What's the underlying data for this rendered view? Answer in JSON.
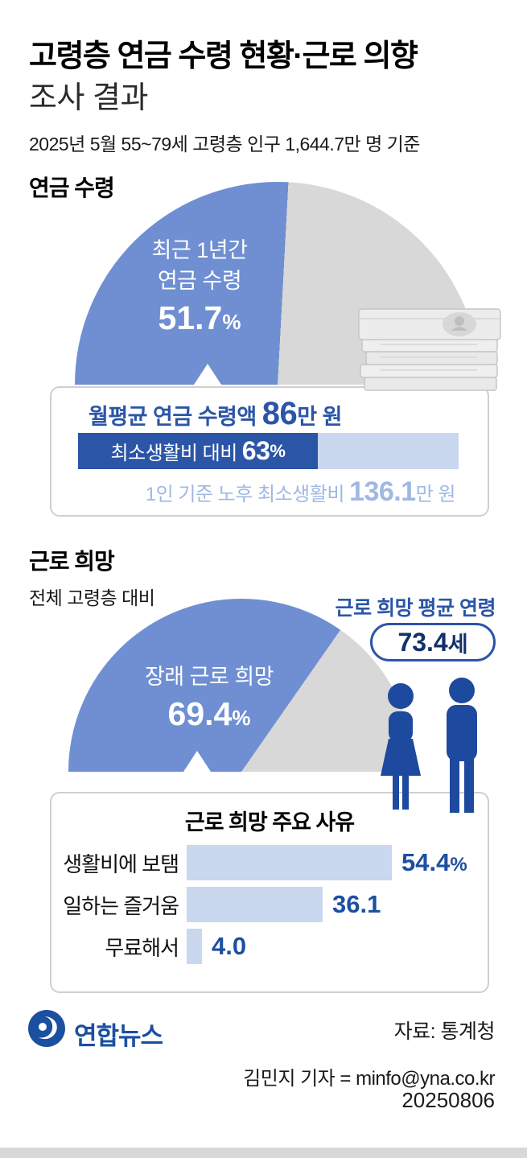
{
  "header": {
    "title_bold": "고령층 연금 수령 현황·근로 의향",
    "title_light": "조사 결과",
    "subtitle": "2025년 5월 55~79세 고령층 인구 1,644.7만 명 기준"
  },
  "pension": {
    "section_title": "연금 수령",
    "gauge_line1": "최근 1년간",
    "gauge_line2": "연금 수령",
    "gauge_value": "51.7",
    "gauge_unit": "%",
    "avg_label": "월평균 연금 수령액 ",
    "avg_value": "86",
    "avg_unit": "만 원",
    "ratio_label": "최소생활비 대비",
    "ratio_value": "63",
    "ratio_unit": "%",
    "mincost_label": "1인 기준 노후 최소생활비 ",
    "mincost_value": "136.1",
    "mincost_unit": "만 원"
  },
  "work": {
    "section_title": "근로 희망",
    "subnote": "전체 고령층 대비",
    "avg_age_label": "근로 희망 평균 연령",
    "avg_age_value": "73.4",
    "avg_age_unit": "세",
    "gauge_line1": "장래 근로 희망",
    "gauge_value": "69.4",
    "gauge_unit": "%",
    "reasons_title": "근로 희망 주요 사유",
    "reasons": [
      {
        "label": "생활비에 보탬",
        "value_display": "54.4",
        "unit": "%"
      },
      {
        "label": "일하는 즐거움",
        "value_display": "36.1",
        "unit": ""
      },
      {
        "label": "무료해서",
        "value_display": "4.0",
        "unit": ""
      }
    ]
  },
  "footer": {
    "logo_text": "연합뉴스",
    "source": "자료: 통계청",
    "byline": "김민지 기자 = minfo@yna.co.kr",
    "date": "20250806"
  },
  "colors": {
    "gauge_blue": "#6f8fd2",
    "gauge_gray": "#d8d8d8",
    "navy": "#1d4fa0",
    "deep_blue": "#2b55a7",
    "light_bar": "#c9d7ef",
    "light_blue_text": "#9fb8e4",
    "logo_blue": "#1b4fa0"
  },
  "chart_data": [
    {
      "type": "pie",
      "subtype": "half_gauge",
      "title": "연금 수령",
      "series": [
        {
          "name": "최근 1년간 연금 수령",
          "value": 51.7
        },
        {
          "name": "remainder",
          "value": 48.3
        }
      ],
      "unit": "%"
    },
    {
      "type": "bar",
      "subtype": "progress",
      "label": "최소생활비 대비",
      "value": 63,
      "max": 100,
      "unit": "%",
      "context": "월평균 연금 수령액 86만 원, 1인 기준 노후 최소생활비 136.1만 원"
    },
    {
      "type": "pie",
      "subtype": "half_gauge",
      "title": "장래 근로 희망",
      "series": [
        {
          "name": "장래 근로 희망",
          "value": 69.4
        },
        {
          "name": "remainder",
          "value": 30.6
        }
      ],
      "unit": "%",
      "annotation": "근로 희망 평균 연령 73.4세"
    },
    {
      "type": "bar",
      "orientation": "horizontal",
      "title": "근로 희망 주요 사유",
      "categories": [
        "생활비에 보탬",
        "일하는 즐거움",
        "무료해서"
      ],
      "values": [
        54.4,
        36.1,
        4.0
      ],
      "unit": "%"
    }
  ]
}
